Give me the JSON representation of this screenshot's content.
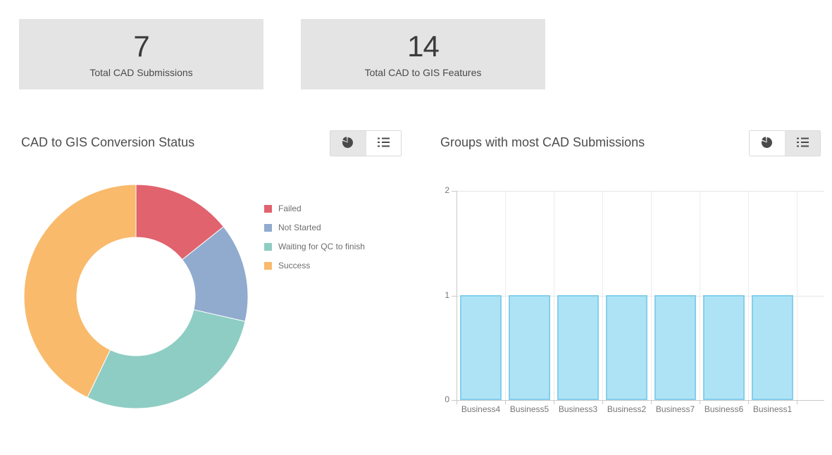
{
  "stat_cards": [
    {
      "value": "7",
      "label": "Total CAD Submissions"
    },
    {
      "value": "14",
      "label": "Total CAD to GIS Features"
    }
  ],
  "panels": {
    "conversion": {
      "title": "CAD to GIS Conversion Status",
      "active_view": "pie"
    },
    "groups": {
      "title": "Groups with most CAD Submissions",
      "active_view": "list"
    }
  },
  "view_toggle": {
    "options": [
      "pie",
      "list"
    ]
  },
  "chart_data": [
    {
      "type": "pie",
      "title": "CAD to GIS Conversion Status",
      "donut": true,
      "start_angle_deg": 0,
      "direction": "clockwise",
      "legend_position": "right",
      "total": 7,
      "series": [
        {
          "label": "Failed",
          "value": 1,
          "color": "#e0636e"
        },
        {
          "label": "Not Started",
          "value": 1,
          "color": "#90abce"
        },
        {
          "label": "Waiting for QC to finish",
          "value": 2,
          "color": "#8ecdc3"
        },
        {
          "label": "Success",
          "value": 3,
          "color": "#f9ba6c"
        }
      ]
    },
    {
      "type": "bar",
      "title": "Groups with most CAD Submissions",
      "categories": [
        "Business4",
        "Business5",
        "Business3",
        "Business2",
        "Business7",
        "Business6",
        "Business1"
      ],
      "values": [
        1,
        1,
        1,
        1,
        1,
        1,
        1
      ],
      "ylim": [
        0,
        2
      ],
      "yticks": [
        0,
        1,
        2
      ],
      "grid": true,
      "legend_position": "none",
      "bar_fill": "#aee3f6",
      "bar_border": "#85cfec"
    }
  ],
  "colors": {
    "card_bg": "#e4e4e4",
    "title_text": "#4d4d4d",
    "tick_text": "#767676",
    "legend_text": "#6e6e6e",
    "axis_line": "#c9c9c9",
    "gridline": "#e5e5e5",
    "toggle_selected_bg": "#e6e6e6",
    "icon": "#4a4a4a"
  }
}
